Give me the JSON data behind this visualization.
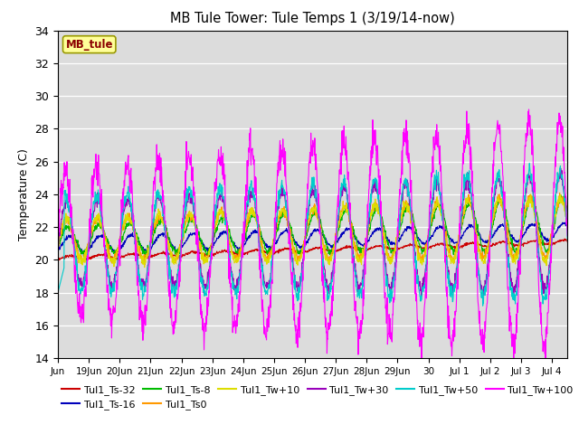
{
  "title": "MB Tule Tower: Tule Temps 1 (3/19/14-now)",
  "ylabel": "Temperature (C)",
  "ylim": [
    14,
    34
  ],
  "yticks": [
    14,
    16,
    18,
    20,
    22,
    24,
    26,
    28,
    30,
    32,
    34
  ],
  "plot_bg_color": "#dcdcdc",
  "fig_bg_color": "#ffffff",
  "legend_label": "MB_tule",
  "series": [
    {
      "label": "Tul1_Ts-32",
      "color": "#cc0000"
    },
    {
      "label": "Tul1_Ts-16",
      "color": "#0000bb"
    },
    {
      "label": "Tul1_Ts-8",
      "color": "#00bb00"
    },
    {
      "label": "Tul1_Ts0",
      "color": "#ff9900"
    },
    {
      "label": "Tul1_Tw+10",
      "color": "#dddd00"
    },
    {
      "label": "Tul1_Tw+30",
      "color": "#9900bb"
    },
    {
      "label": "Tul1_Tw+50",
      "color": "#00cccc"
    },
    {
      "label": "Tul1_Tw+100",
      "color": "#ff00ff"
    }
  ],
  "xtick_positions": [
    0,
    1,
    2,
    3,
    4,
    5,
    6,
    7,
    8,
    9,
    10,
    11,
    12,
    13,
    14,
    15,
    16
  ],
  "xtick_labels": [
    "Jun",
    "19Jun",
    "20Jun",
    "21Jun",
    "22Jun",
    "23Jun",
    "24Jun",
    "25Jun",
    "26Jun",
    "27Jun",
    "28Jun",
    "29Jun",
    "30",
    "Jul 1",
    "Jul 2",
    "Jul 3",
    "Jul 4"
  ],
  "num_days": 16.5,
  "figsize": [
    6.4,
    4.8
  ],
  "dpi": 100
}
